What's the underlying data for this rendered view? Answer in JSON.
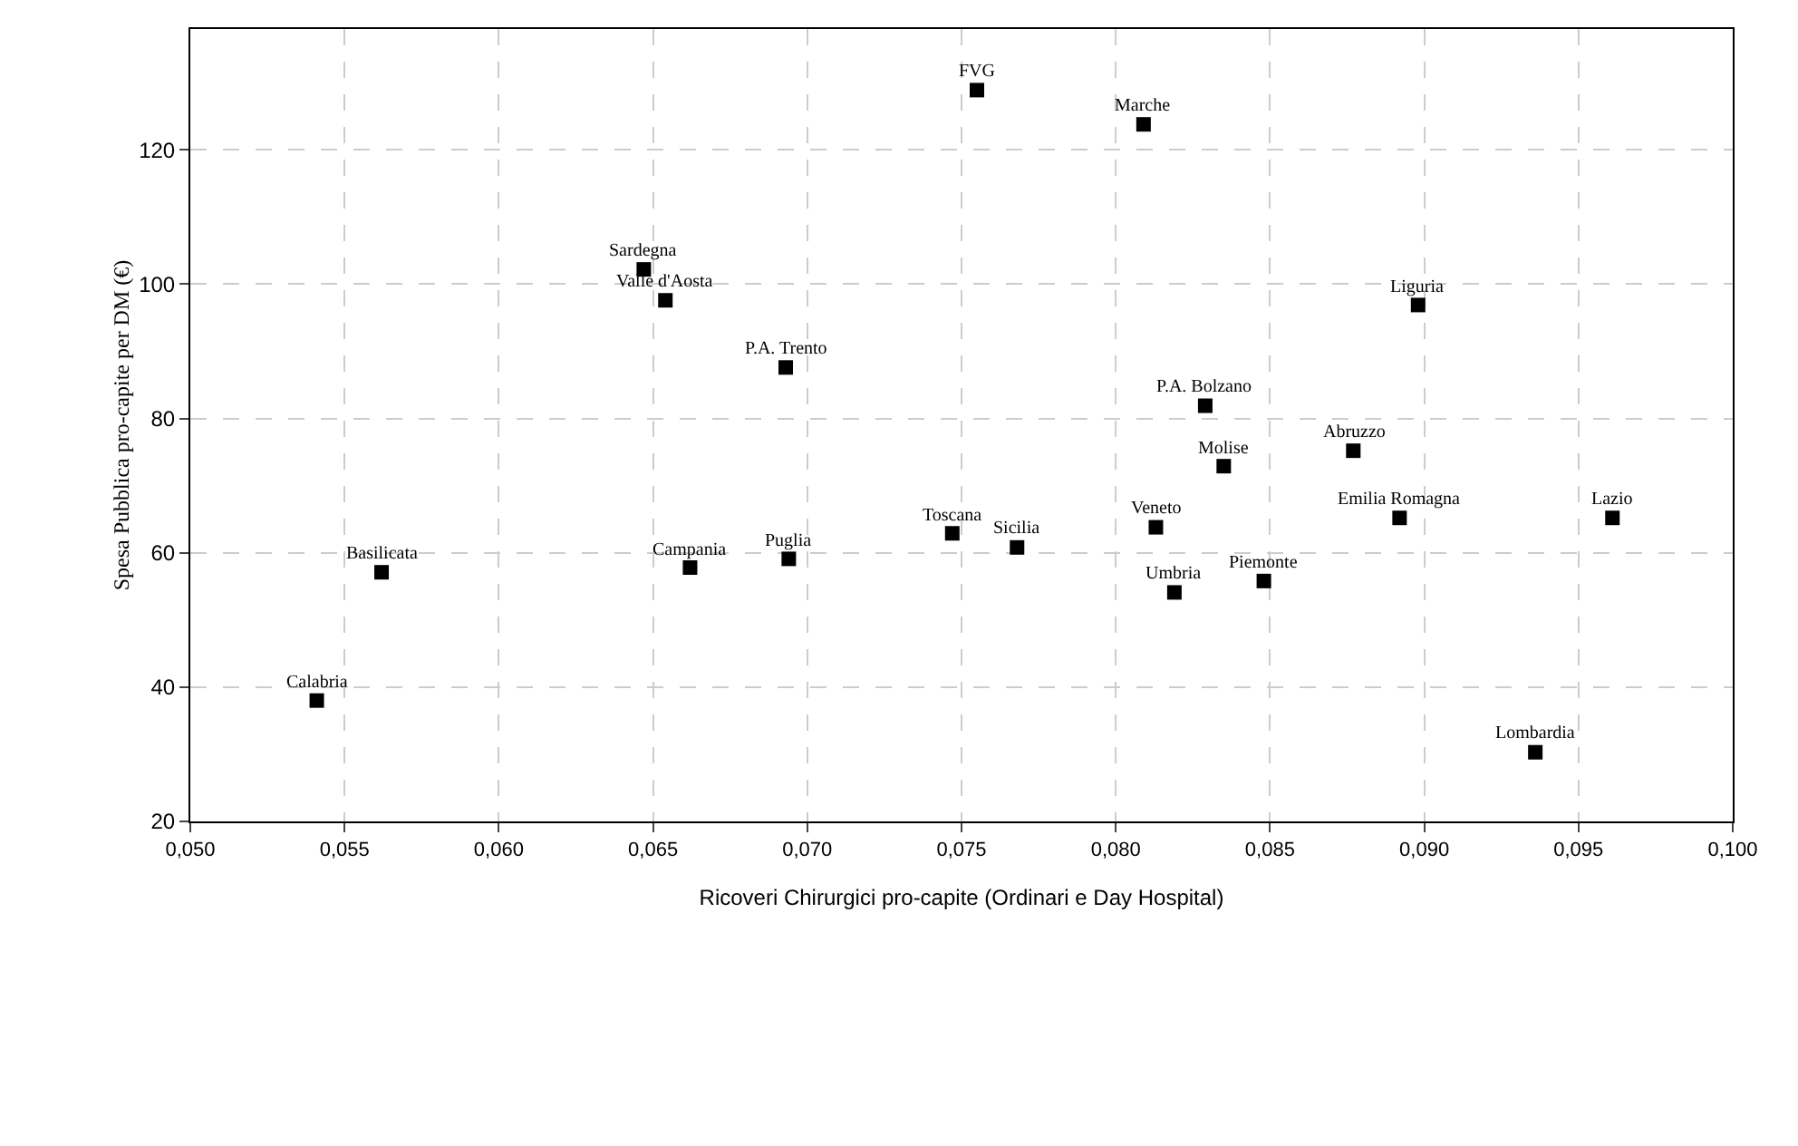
{
  "chart_data": {
    "type": "scatter",
    "xlabel": "Ricoveri Chirurgici pro-capite (Ordinari e Day Hospital)",
    "ylabel": "Spesa Pubblica pro-capite per DM (€)",
    "xlim": [
      0.05,
      0.1
    ],
    "xticks": [
      {
        "value": 0.05,
        "label": "0,050"
      },
      {
        "value": 0.055,
        "label": "0,055"
      },
      {
        "value": 0.06,
        "label": "0,060"
      },
      {
        "value": 0.065,
        "label": "0,065"
      },
      {
        "value": 0.07,
        "label": "0,070"
      },
      {
        "value": 0.075,
        "label": "0,075"
      },
      {
        "value": 0.08,
        "label": "0,080"
      },
      {
        "value": 0.085,
        "label": "0,085"
      },
      {
        "value": 0.09,
        "label": "0,090"
      },
      {
        "value": 0.095,
        "label": "0,095"
      },
      {
        "value": 0.1,
        "label": "0,100"
      }
    ],
    "ylim": [
      20,
      138
    ],
    "yticks": [
      20,
      40,
      60,
      80,
      100,
      120
    ],
    "grid": true,
    "marker": "square",
    "x": [
      0.0541,
      0.0562,
      0.0647,
      0.0654,
      0.0693,
      0.0662,
      0.0694,
      0.0755,
      0.0809,
      0.0747,
      0.0768,
      0.0898,
      0.0829,
      0.0835,
      0.0877,
      0.0892,
      0.0961,
      0.0813,
      0.0819,
      0.0848,
      0.0936
    ],
    "series": [
      {
        "color": "#000000",
        "values": [
          38,
          57.1,
          102.2,
          97.6,
          87.6,
          57.8,
          59.1,
          128.9,
          123.8,
          62.9,
          60.8,
          96.9,
          81.9,
          72.9,
          75.2,
          65.2,
          65.2,
          63.8,
          54.1,
          55.8,
          30.3
        ]
      }
    ],
    "annotations": [
      {
        "text": "Calabria",
        "x": 0.0541,
        "y": 38
      },
      {
        "text": "Basilicata",
        "x": 0.0562,
        "y": 57.1
      },
      {
        "text": "Sardegna",
        "x": 0.0647,
        "y": 102.2
      },
      {
        "text": "Valle d'Aosta",
        "x": 0.0654,
        "y": 97.6
      },
      {
        "text": "P.A. Trento",
        "x": 0.0693,
        "y": 87.6
      },
      {
        "text": "Campania",
        "x": 0.0662,
        "y": 57.8
      },
      {
        "text": "Puglia",
        "x": 0.0694,
        "y": 59.1
      },
      {
        "text": "FVG",
        "x": 0.0755,
        "y": 128.9
      },
      {
        "text": "Marche",
        "x": 0.0809,
        "y": 123.8
      },
      {
        "text": "Toscana",
        "x": 0.0747,
        "y": 62.9
      },
      {
        "text": "Sicilia",
        "x": 0.0768,
        "y": 60.8
      },
      {
        "text": "Liguria",
        "x": 0.0898,
        "y": 96.9
      },
      {
        "text": "P.A. Bolzano",
        "x": 0.0829,
        "y": 81.9
      },
      {
        "text": "Molise",
        "x": 0.0835,
        "y": 72.9
      },
      {
        "text": "Abruzzo",
        "x": 0.0877,
        "y": 75.2
      },
      {
        "text": "Emilia Romagna",
        "x": 0.0892,
        "y": 65.2
      },
      {
        "text": "Lazio",
        "x": 0.0961,
        "y": 65.2
      },
      {
        "text": "Veneto",
        "x": 0.0813,
        "y": 63.8
      },
      {
        "text": "Umbria",
        "x": 0.0819,
        "y": 54.1
      },
      {
        "text": "Piemonte",
        "x": 0.0848,
        "y": 55.8
      },
      {
        "text": "Lombardia",
        "x": 0.0936,
        "y": 30.3
      }
    ]
  }
}
